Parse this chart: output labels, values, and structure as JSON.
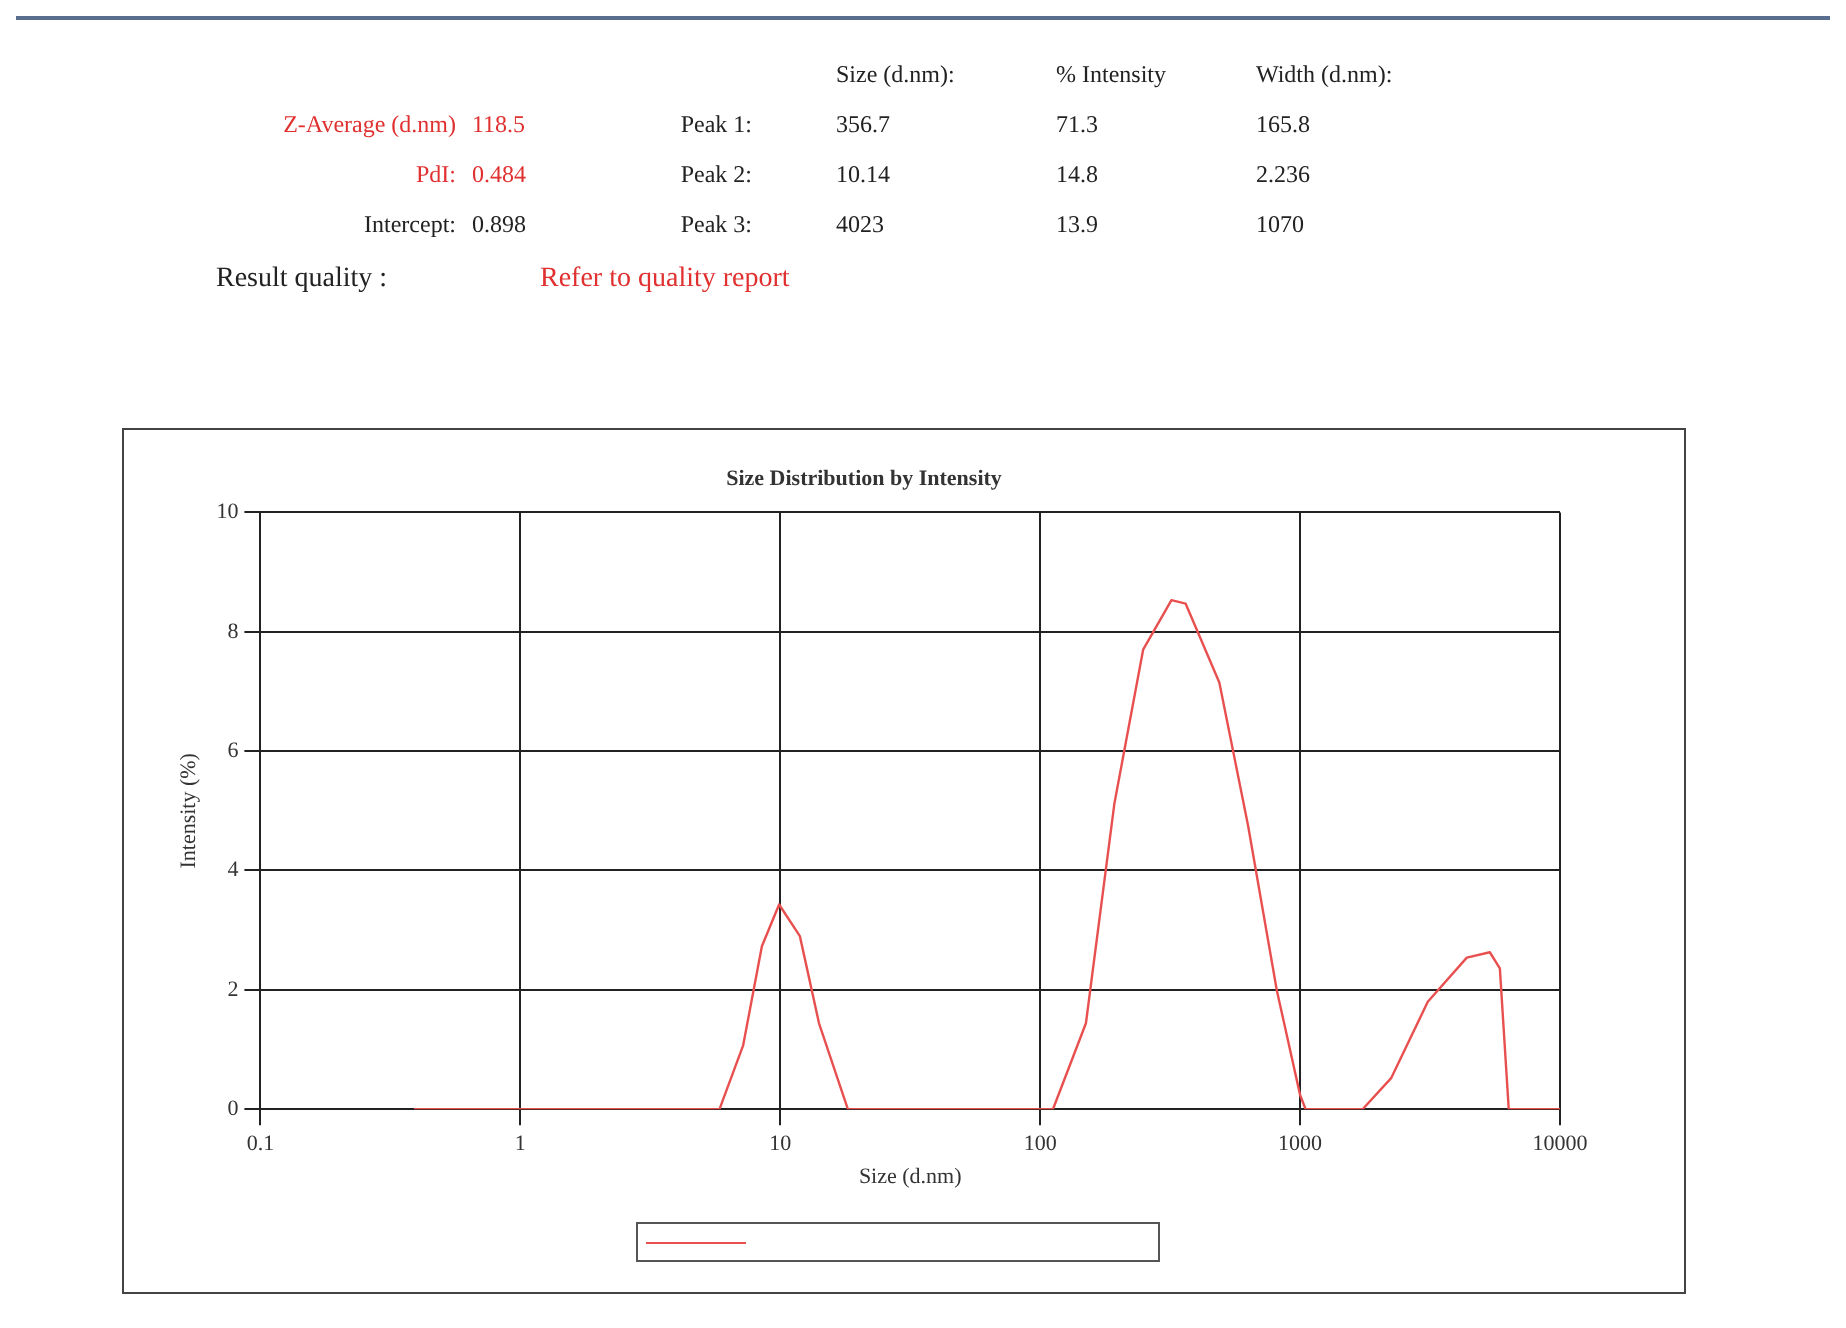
{
  "chart_data": {
    "type": "line",
    "title": "Size Distribution by Intensity",
    "xlabel": "Size (d.nm)",
    "ylabel": "Intensity (%)",
    "annotations": [
      "Size (d.nm):",
      "% Intensity",
      "Width (d.nm):",
      "Z-Average (d.nm)",
      "118.5",
      "Peak 1:",
      "356.7",
      "71.3",
      "165.8",
      "PdI:",
      "0.484",
      "Peak 2:",
      "10.14",
      "14.8",
      "2.236",
      "Intercept:",
      "0.898",
      "Peak 3:",
      "4023",
      "13.9",
      "1070",
      "Result quality :",
      "Refer to quality report"
    ],
    "series": [
      {
        "color": "#e8504f",
        "x": [
          0.39,
          1,
          5.84,
          7.2,
          8.5,
          9.9,
          11.9,
          14.1,
          18.2,
          112,
          150,
          193,
          249,
          320,
          363,
          489,
          631,
          814,
          1000,
          1050,
          1740,
          2240,
          3100,
          4380,
          5370,
          5870,
          6350,
          10000
        ],
        "values": [
          0,
          0,
          0,
          1.07,
          2.73,
          3.43,
          2.9,
          1.44,
          0,
          0,
          1.44,
          5.12,
          7.7,
          8.53,
          8.47,
          7.15,
          4.75,
          1.99,
          0.24,
          0,
          0,
          0.52,
          1.8,
          2.54,
          2.63,
          2.36,
          0,
          0
        ]
      }
    ],
    "log": "x",
    "xlim": [
      0.1,
      10000
    ],
    "xticks": [
      0.1,
      1,
      10,
      100,
      1000,
      10000
    ],
    "ylim": [
      0,
      10
    ],
    "yticks": [
      0,
      2,
      4,
      6,
      8,
      10
    ],
    "grid": true,
    "marker": "none",
    "line_style": "solid"
  }
}
